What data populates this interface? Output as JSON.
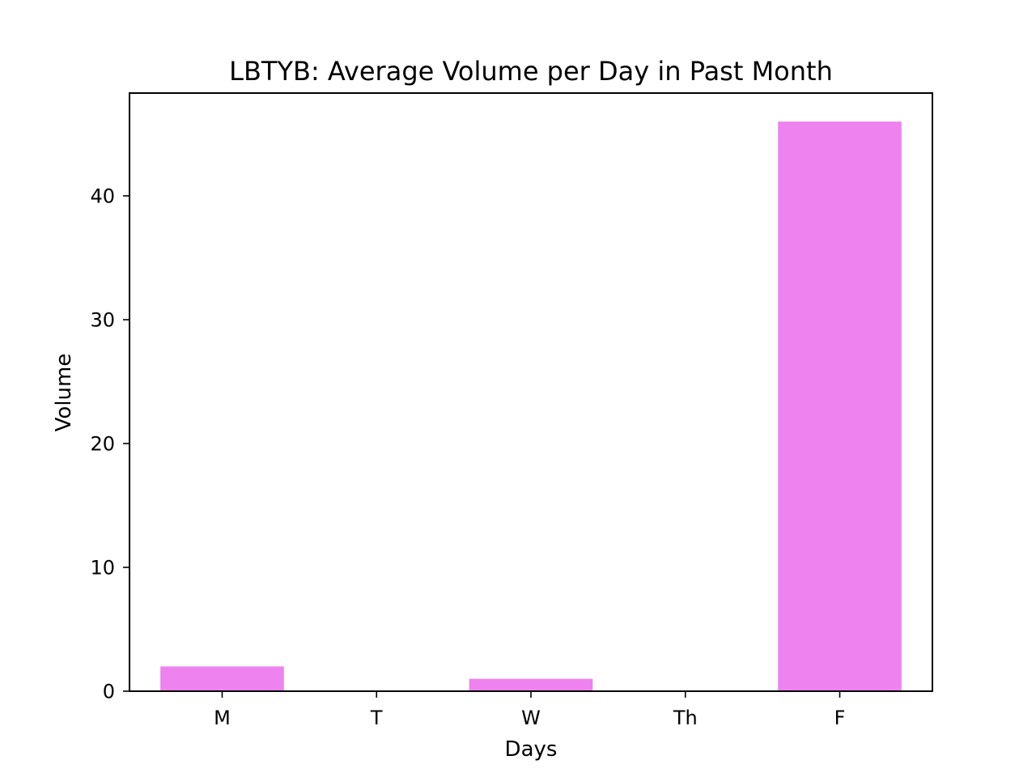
{
  "chart_data": {
    "type": "bar",
    "title": "LBTYB: Average Volume per Day in Past Month",
    "xlabel": "Days",
    "ylabel": "Volume",
    "categories": [
      "M",
      "T",
      "W",
      "Th",
      "F"
    ],
    "values": [
      2,
      0,
      1,
      0,
      46
    ],
    "ylim": [
      0,
      48.3
    ],
    "yticks": [
      0,
      10,
      20,
      30,
      40
    ],
    "bar_color": "#ee82ee",
    "grid": false,
    "legend": "none"
  }
}
